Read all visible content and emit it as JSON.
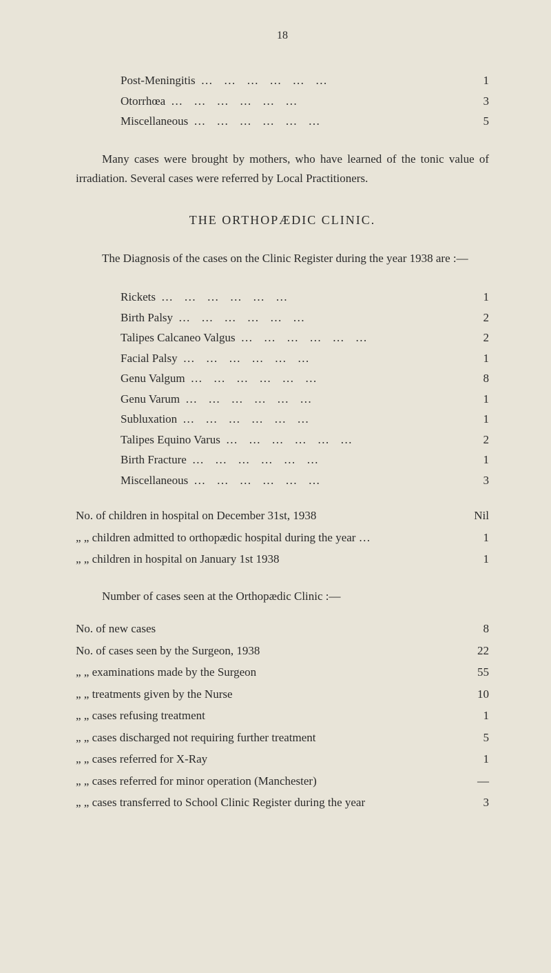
{
  "page_number": "18",
  "top_list": [
    {
      "label": "Post-Meningitis",
      "value": "1"
    },
    {
      "label": "Otorrhœa",
      "value": "3"
    },
    {
      "label": "Miscellaneous",
      "value": "5"
    }
  ],
  "paragraph1": "Many cases were brought by mothers, who have learned of the tonic value of irradiation. Several cases were referred by Local Practitioners.",
  "heading": "THE ORTHOPÆDIC CLINIC.",
  "paragraph2": "The Diagnosis of the cases on the Clinic Register during the year 1938 are :—",
  "diagnosis_list": [
    {
      "label": "Rickets",
      "value": "1"
    },
    {
      "label": "Birth Palsy",
      "value": "2"
    },
    {
      "label": "Talipes Calcaneo Valgus",
      "value": "2"
    },
    {
      "label": "Facial Palsy",
      "value": "1"
    },
    {
      "label": "Genu Valgum",
      "value": "8"
    },
    {
      "label": "Genu Varum",
      "value": "1"
    },
    {
      "label": "Subluxation",
      "value": "1"
    },
    {
      "label": "Talipes Equino Varus",
      "value": "2"
    },
    {
      "label": "Birth Fracture",
      "value": "1"
    },
    {
      "label": "Miscellaneous",
      "value": "3"
    }
  ],
  "stats_top": [
    {
      "label": "No. of children in hospital on December 31st, 1938",
      "value": "Nil"
    },
    {
      "label": "„ „ children admitted to orthopædic hospital during the year …",
      "value": "1"
    },
    {
      "label": "„ „ children in hospital on January 1st 1938",
      "value": "1"
    }
  ],
  "subheading": "Number of cases seen at the Orthopædic Clinic :—",
  "stats_bottom": [
    {
      "label": "No. of new cases",
      "value": "8"
    },
    {
      "label": "No. of cases seen by the Surgeon, 1938",
      "value": "22"
    },
    {
      "label": "„ „ examinations made by the Surgeon",
      "value": "55"
    },
    {
      "label": "„ „ treatments given by the Nurse",
      "value": "10"
    },
    {
      "label": "„ „ cases refusing treatment",
      "value": "1"
    },
    {
      "label": "„ „ cases discharged not requiring further treatment",
      "value": "5"
    },
    {
      "label": "„ „ cases referred for X-Ray",
      "value": "1"
    },
    {
      "label": "„ „ cases referred for minor operation (Manchester)",
      "value": "—"
    },
    {
      "label": "„ „ cases transferred to School Clinic Register during the year",
      "value": "3"
    }
  ],
  "dots_fill": "…    …    …    …    …    …"
}
